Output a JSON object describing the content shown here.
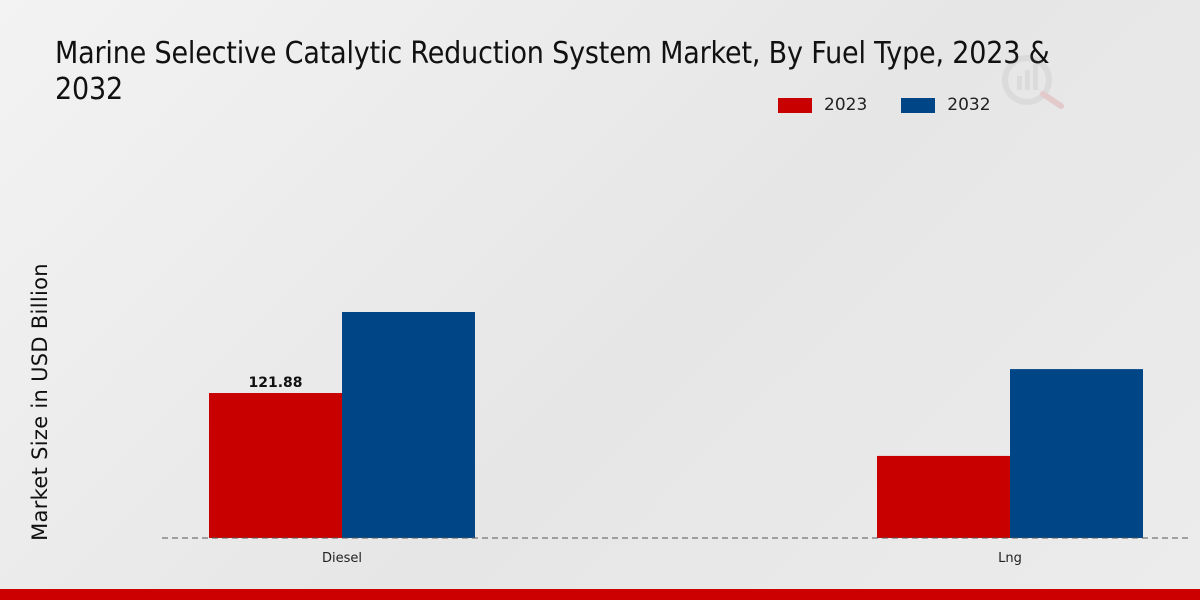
{
  "chart_data": {
    "type": "bar",
    "title": "Marine Selective Catalytic Reduction System Market, By Fuel Type, 2023 & 2032",
    "xlabel": "",
    "ylabel": "Market Size in USD Billion",
    "categories": [
      "Diesel",
      "Lng"
    ],
    "series": [
      {
        "name": "2023",
        "color": "#c80000",
        "values": [
          121.88,
          69.0
        ]
      },
      {
        "name": "2032",
        "color": "#004687",
        "values": [
          190.0,
          142.0
        ]
      }
    ],
    "data_labels": [
      {
        "series": "2023",
        "category": "Diesel",
        "text": "121.88"
      }
    ],
    "ylim": [
      0,
      250
    ],
    "grid": false,
    "legend_position": "top-right"
  },
  "theme": {
    "accent_color": "#cc0000",
    "baseline_color": "#555555"
  }
}
